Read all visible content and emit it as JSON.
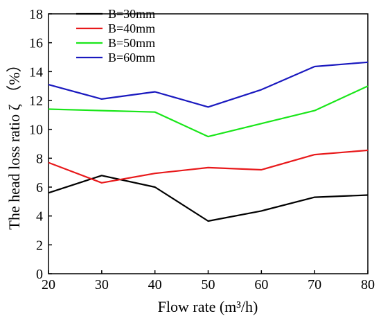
{
  "chart_data": {
    "type": "line",
    "title": "",
    "xlabel": "Flow rate (m³/h)",
    "ylabel": "The head loss ratio ζ （%）",
    "x": [
      20,
      30,
      40,
      50,
      60,
      70,
      80
    ],
    "xticks": [
      "20",
      "30",
      "40",
      "50",
      "60",
      "70",
      "80"
    ],
    "yticks": [
      "0",
      "2",
      "4",
      "6",
      "8",
      "10",
      "12",
      "14",
      "16",
      "18"
    ],
    "xlim": [
      20,
      80
    ],
    "ylim": [
      0,
      18
    ],
    "grid": false,
    "legend_position": "top-left",
    "series": [
      {
        "name": "B=30mm",
        "color": "#000000",
        "values": [
          5.6,
          6.8,
          6.0,
          3.65,
          4.35,
          5.3,
          5.45
        ]
      },
      {
        "name": "B=40mm",
        "color": "#e8191b",
        "values": [
          7.7,
          6.3,
          6.95,
          7.35,
          7.2,
          8.25,
          8.55
        ]
      },
      {
        "name": "B=50mm",
        "color": "#19e619",
        "values": [
          11.4,
          11.3,
          11.2,
          9.5,
          10.4,
          11.3,
          13.0
        ]
      },
      {
        "name": "B=60mm",
        "color": "#1a19bf",
        "values": [
          13.1,
          12.1,
          12.6,
          11.55,
          12.75,
          14.35,
          14.65
        ]
      }
    ]
  }
}
